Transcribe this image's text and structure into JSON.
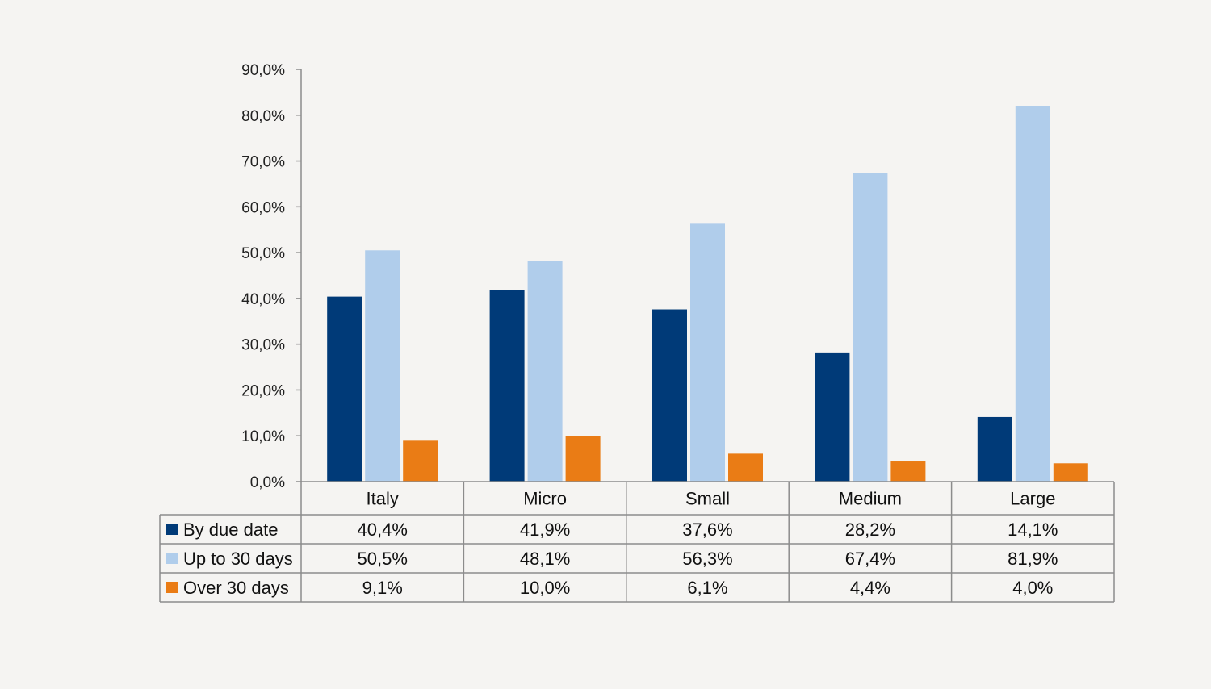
{
  "chart_data": {
    "type": "bar",
    "categories": [
      "Italy",
      "Micro",
      "Small",
      "Medium",
      "Large"
    ],
    "series": [
      {
        "name": "By due date",
        "color": "#003a78",
        "values": [
          40.4,
          41.9,
          37.6,
          28.2,
          14.1
        ],
        "labels": [
          "40,4%",
          "41,9%",
          "37,6%",
          "28,2%",
          "14,1%"
        ]
      },
      {
        "name": "Up to 30 days",
        "color": "#b0cdeb",
        "values": [
          50.5,
          48.1,
          56.3,
          67.4,
          81.9
        ],
        "labels": [
          "50,5%",
          "48,1%",
          "56,3%",
          "67,4%",
          "81,9%"
        ]
      },
      {
        "name": "Over 30 days",
        "color": "#ea7c15",
        "values": [
          9.1,
          10.0,
          6.1,
          4.4,
          4.0
        ],
        "labels": [
          "9,1%",
          "10,0%",
          "6,1%",
          "4,4%",
          "4,0%"
        ]
      }
    ],
    "yticks": [
      "0,0%",
      "10,0%",
      "20,0%",
      "30,0%",
      "40,0%",
      "50,0%",
      "60,0%",
      "70,0%",
      "80,0%",
      "90,0%"
    ],
    "ylim": [
      0,
      90
    ],
    "grid": false,
    "legend": "data-table"
  }
}
